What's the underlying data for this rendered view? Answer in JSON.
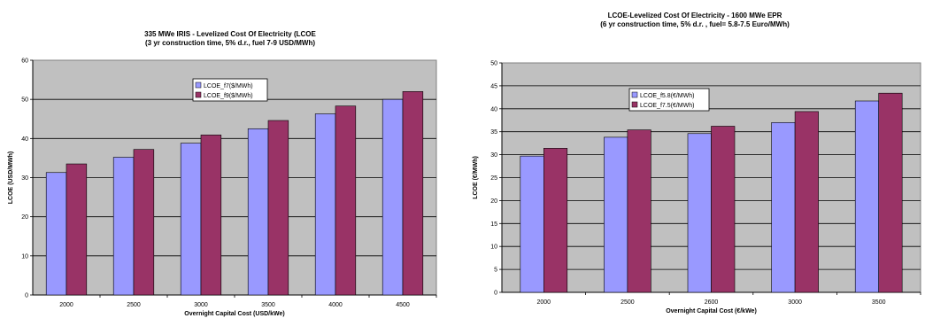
{
  "chart_data": [
    {
      "type": "bar",
      "title_line1": "335 MWe IRIS -  Levelized Cost Of Electricity (LCOE",
      "title_line2": "(3 yr construction time, 5% d.r., fuel 7-9 USD/MWh)",
      "xlabel": "Overnight Capital Cost (USD/kWe)",
      "ylabel": "LCOE (USD/MWh)",
      "categories": [
        "2000",
        "2500",
        "3000",
        "3500",
        "4000",
        "4500"
      ],
      "ylim": [
        0,
        60
      ],
      "ytick_step": 10,
      "grid": true,
      "legend_position": "top-center",
      "series": [
        {
          "name": "LCOE_f7($/MWh)",
          "color": "#9999ff",
          "values": [
            31.3,
            35.2,
            38.8,
            42.5,
            46.3,
            50.0
          ]
        },
        {
          "name": "LCOE_f9($/MWh)",
          "color": "#993366",
          "values": [
            33.5,
            37.2,
            40.9,
            44.6,
            48.3,
            52.0
          ]
        }
      ]
    },
    {
      "type": "bar",
      "title_line1": "LCOE-Levelized Cost Of Electricity - 1600 MWe EPR",
      "title_line2": "(6 yr construction time, 5% d.r. ,  fuel=  5.8-7.5 Euro/MWh)",
      "xlabel": "Overnight Capital Cost  (€/kWe)",
      "ylabel": "LCOE (€/MWh)",
      "categories": [
        "2000",
        "2500",
        "2600",
        "3000",
        "3500"
      ],
      "ylim": [
        0,
        50
      ],
      "ytick_step": 5,
      "grid": true,
      "legend_position": "top-left",
      "series": [
        {
          "name": "LCOE_f5.8(€/MWh)",
          "color": "#9999ff",
          "values": [
            29.7,
            33.8,
            34.6,
            37.0,
            41.7
          ]
        },
        {
          "name": "LCOE_f7.5(€/MWh)",
          "color": "#993366",
          "values": [
            31.4,
            35.4,
            36.2,
            39.4,
            43.4
          ]
        }
      ]
    }
  ]
}
